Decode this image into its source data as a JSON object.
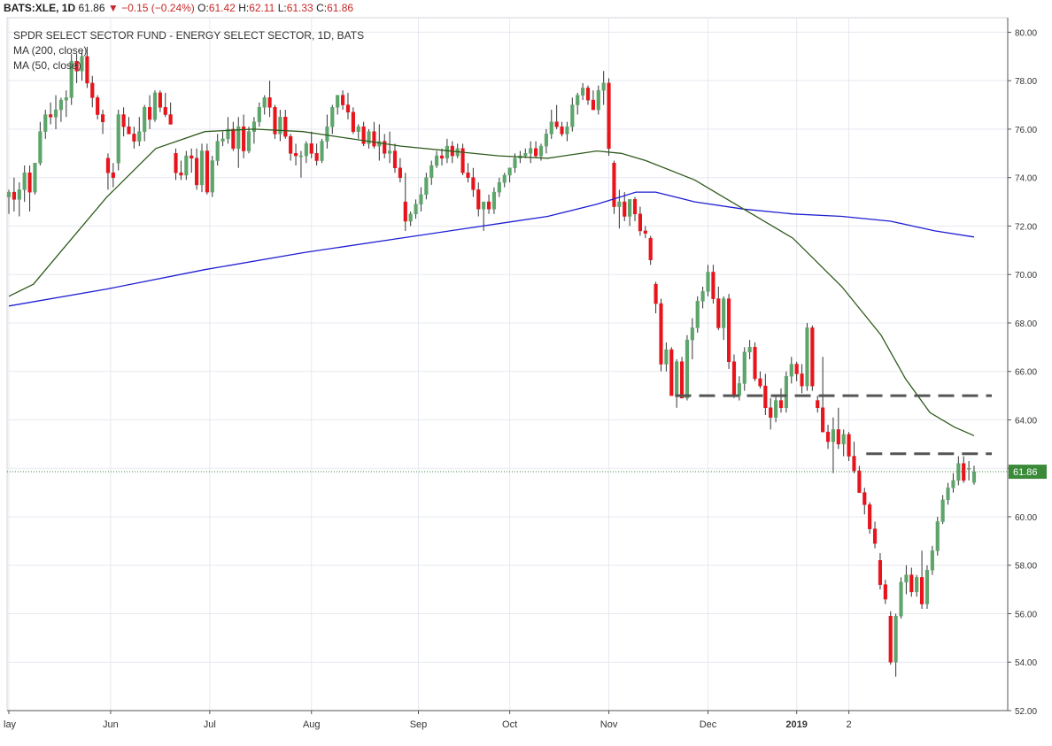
{
  "header": {
    "symbol": "BATS:XLE, 1D",
    "last": "61.86",
    "change": "−0.15 (−0.24%)",
    "o_label": "O:",
    "o": "61.42",
    "h_label": "H:",
    "h": "62.11",
    "l_label": "L:",
    "l": "61.33",
    "c_label": "C:",
    "c": "61.86"
  },
  "legend": {
    "title": "SPDR SELECT SECTOR FUND - ENERGY SELECT SECTOR, 1D, BATS",
    "ma200": "MA (200, close)",
    "ma50": "MA (50, close)"
  },
  "colors": {
    "up": "#5ea56b",
    "down": "#e8141c",
    "ma200": "#1e1ed2",
    "ma50": "#2e5a1c",
    "grid": "#e6e9f0",
    "last_price": "#3a8a3a",
    "levels": "#555555"
  },
  "chart_data": {
    "type": "candlestick",
    "title": "SPDR SELECT SECTOR FUND - ENERGY SELECT SECTOR, 1D, BATS",
    "ylim": [
      52,
      80.6
    ],
    "y_ticks": [
      "80.00",
      "78.00",
      "76.00",
      "74.00",
      "72.00",
      "70.00",
      "68.00",
      "66.00",
      "64.00",
      "62.00",
      "60.00",
      "58.00",
      "56.00",
      "54.00",
      "52.00"
    ],
    "x_ticks": [
      "lay",
      "Jun",
      "Jul",
      "Aug",
      "Sep",
      "Oct",
      "Nov",
      "Dec",
      "2019",
      "2"
    ],
    "last_price_label": "61.86",
    "grid": true,
    "ma200": [
      [
        0,
        68.7
      ],
      [
        20,
        69.4
      ],
      [
        40,
        70.2
      ],
      [
        60,
        70.9
      ],
      [
        80,
        71.5
      ],
      [
        100,
        72.1
      ],
      [
        110,
        72.4
      ],
      [
        120,
        72.9
      ],
      [
        128,
        73.4
      ],
      [
        132,
        73.4
      ],
      [
        140,
        73.0
      ],
      [
        150,
        72.7
      ],
      [
        160,
        72.5
      ],
      [
        170,
        72.4
      ],
      [
        180,
        72.2
      ],
      [
        189,
        71.8
      ],
      [
        197,
        71.55
      ]
    ],
    "ma50": [
      [
        0,
        69.1
      ],
      [
        5,
        69.6
      ],
      [
        10,
        70.8
      ],
      [
        20,
        73.2
      ],
      [
        30,
        75.2
      ],
      [
        40,
        75.9
      ],
      [
        50,
        76.0
      ],
      [
        60,
        75.9
      ],
      [
        70,
        75.6
      ],
      [
        80,
        75.3
      ],
      [
        100,
        74.9
      ],
      [
        110,
        74.8
      ],
      [
        120,
        75.1
      ],
      [
        125,
        75.0
      ],
      [
        130,
        74.7
      ],
      [
        140,
        73.9
      ],
      [
        150,
        72.7
      ],
      [
        160,
        71.5
      ],
      [
        170,
        69.5
      ],
      [
        178,
        67.5
      ],
      [
        183,
        65.7
      ],
      [
        188,
        64.3
      ],
      [
        193,
        63.7
      ],
      [
        197,
        63.35
      ]
    ],
    "levels": [
      {
        "price": 65.0,
        "from": 136,
        "to": 197
      },
      {
        "price": 62.6,
        "from": 175,
        "to": 197
      }
    ],
    "candles": [
      [
        73.2,
        73.5,
        72.5,
        73.4
      ],
      [
        73.4,
        74.0,
        72.6,
        73.1
      ],
      [
        73.1,
        73.8,
        72.4,
        73.5
      ],
      [
        73.5,
        74.5,
        73.0,
        74.2
      ],
      [
        74.2,
        74.5,
        72.6,
        73.4
      ],
      [
        73.4,
        74.6,
        73.3,
        74.6
      ],
      [
        74.6,
        76.3,
        74.5,
        75.9
      ],
      [
        75.9,
        76.8,
        75.6,
        76.6
      ],
      [
        76.6,
        77.1,
        76.2,
        76.5
      ],
      [
        76.5,
        77.4,
        76.0,
        76.8
      ],
      [
        76.8,
        77.3,
        76.3,
        77.2
      ],
      [
        77.2,
        77.6,
        76.5,
        77.3
      ],
      [
        77.3,
        79.1,
        77.0,
        78.8
      ],
      [
        78.8,
        79.1,
        77.9,
        78.4
      ],
      [
        78.4,
        79.2,
        78.0,
        79.0
      ],
      [
        79.0,
        79.4,
        77.7,
        77.9
      ],
      [
        77.9,
        78.2,
        76.9,
        77.3
      ],
      [
        77.3,
        77.4,
        76.4,
        76.6
      ],
      [
        76.6,
        76.8,
        75.8,
        76.3
      ],
      [
        74.8,
        75.0,
        73.5,
        74.2
      ],
      [
        74.2,
        74.6,
        73.6,
        74.0
      ],
      [
        74.6,
        76.8,
        74.3,
        76.6
      ],
      [
        76.6,
        76.9,
        75.7,
        76.1
      ],
      [
        76.1,
        76.5,
        75.8,
        75.8
      ],
      [
        75.8,
        76.1,
        75.2,
        75.5
      ],
      [
        75.5,
        76.5,
        75.3,
        75.9
      ],
      [
        75.9,
        77.0,
        75.5,
        76.9
      ],
      [
        76.9,
        77.4,
        76.0,
        76.4
      ],
      [
        76.4,
        77.6,
        76.3,
        77.5
      ],
      [
        77.5,
        77.6,
        76.7,
        76.9
      ],
      [
        76.9,
        77.5,
        76.5,
        76.6
      ],
      [
        76.6,
        77.1,
        76.2,
        76.2
      ],
      [
        75.0,
        75.2,
        73.9,
        74.2
      ],
      [
        74.2,
        74.7,
        73.9,
        74.1
      ],
      [
        74.1,
        75.1,
        73.9,
        74.9
      ],
      [
        74.9,
        75.2,
        74.2,
        74.8
      ],
      [
        74.8,
        75.2,
        73.5,
        73.7
      ],
      [
        73.7,
        75.4,
        73.4,
        75.1
      ],
      [
        75.1,
        75.4,
        73.3,
        73.4
      ],
      [
        73.4,
        74.9,
        73.2,
        74.7
      ],
      [
        74.7,
        75.8,
        74.5,
        75.5
      ],
      [
        75.5,
        75.9,
        75.3,
        75.6
      ],
      [
        75.6,
        76.5,
        75.4,
        76.0
      ],
      [
        76.0,
        76.3,
        75.1,
        75.2
      ],
      [
        75.2,
        76.5,
        74.4,
        76.1
      ],
      [
        76.1,
        76.6,
        74.8,
        75.1
      ],
      [
        75.1,
        76.1,
        75.0,
        75.9
      ],
      [
        75.9,
        76.5,
        75.4,
        76.3
      ],
      [
        76.3,
        77.1,
        76.1,
        76.9
      ],
      [
        76.9,
        77.4,
        76.6,
        77.3
      ],
      [
        77.3,
        78.0,
        76.5,
        76.9
      ],
      [
        76.9,
        77.0,
        75.6,
        75.8
      ],
      [
        75.8,
        76.8,
        75.5,
        76.5
      ],
      [
        76.5,
        76.8,
        75.6,
        75.7
      ],
      [
        75.7,
        75.8,
        74.7,
        75.0
      ],
      [
        75.0,
        75.4,
        74.5,
        74.9
      ],
      [
        74.9,
        75.1,
        74.0,
        74.9
      ],
      [
        74.9,
        75.5,
        74.6,
        75.4
      ],
      [
        75.4,
        75.9,
        74.8,
        75.0
      ],
      [
        75.0,
        75.4,
        74.5,
        74.7
      ],
      [
        74.7,
        75.6,
        74.6,
        75.5
      ],
      [
        75.5,
        76.6,
        75.2,
        76.1
      ],
      [
        76.1,
        77.0,
        75.8,
        76.9
      ],
      [
        76.9,
        77.4,
        76.6,
        77.4
      ],
      [
        77.4,
        77.6,
        76.8,
        77.0
      ],
      [
        77.0,
        77.5,
        76.4,
        76.7
      ],
      [
        76.7,
        76.9,
        75.8,
        75.9
      ],
      [
        75.9,
        76.2,
        75.6,
        76.1
      ],
      [
        76.1,
        76.3,
        75.3,
        75.4
      ],
      [
        75.4,
        76.0,
        75.2,
        75.9
      ],
      [
        75.9,
        76.3,
        75.2,
        75.3
      ],
      [
        75.3,
        76.2,
        74.7,
        75.5
      ],
      [
        75.5,
        75.8,
        74.8,
        75.0
      ],
      [
        75.0,
        75.9,
        74.6,
        75.1
      ],
      [
        75.1,
        75.4,
        74.2,
        74.4
      ],
      [
        74.4,
        74.8,
        73.8,
        74.0
      ],
      [
        73.0,
        74.2,
        71.8,
        72.2
      ],
      [
        72.2,
        72.6,
        72.0,
        72.5
      ],
      [
        72.5,
        73.1,
        72.3,
        72.9
      ],
      [
        72.9,
        73.6,
        72.6,
        73.3
      ],
      [
        73.3,
        74.2,
        73.1,
        74.0
      ],
      [
        74.0,
        74.7,
        73.7,
        74.5
      ],
      [
        74.5,
        75.1,
        74.4,
        74.9
      ],
      [
        74.9,
        75.2,
        74.5,
        74.8
      ],
      [
        74.8,
        75.6,
        74.6,
        75.3
      ],
      [
        75.3,
        75.5,
        74.6,
        74.9
      ],
      [
        74.9,
        75.4,
        74.8,
        75.2
      ],
      [
        75.2,
        75.4,
        74.1,
        74.2
      ],
      [
        74.2,
        74.6,
        73.8,
        74.0
      ],
      [
        74.0,
        74.4,
        73.2,
        73.5
      ],
      [
        73.5,
        73.8,
        72.4,
        72.7
      ],
      [
        72.7,
        73.0,
        71.8,
        73.0
      ],
      [
        73.0,
        73.3,
        72.5,
        72.7
      ],
      [
        72.7,
        73.6,
        72.5,
        73.4
      ],
      [
        73.4,
        74.0,
        73.2,
        73.8
      ],
      [
        73.8,
        74.2,
        73.6,
        74.1
      ],
      [
        74.1,
        74.4,
        73.8,
        74.4
      ],
      [
        74.4,
        75.0,
        74.2,
        74.8
      ],
      [
        74.8,
        75.1,
        74.6,
        74.9
      ],
      [
        74.9,
        75.2,
        74.8,
        75.0
      ],
      [
        75.0,
        75.5,
        74.6,
        75.2
      ],
      [
        75.2,
        75.5,
        74.8,
        74.9
      ],
      [
        74.9,
        75.4,
        74.7,
        75.3
      ],
      [
        75.3,
        76.0,
        75.0,
        75.8
      ],
      [
        75.8,
        76.8,
        75.6,
        76.3
      ],
      [
        76.3,
        77.0,
        76.0,
        76.1
      ],
      [
        76.1,
        76.3,
        75.7,
        75.8
      ],
      [
        75.8,
        76.3,
        75.5,
        76.1
      ],
      [
        76.1,
        77.3,
        75.9,
        77.0
      ],
      [
        77.0,
        77.5,
        76.6,
        77.4
      ],
      [
        77.4,
        77.9,
        77.2,
        77.7
      ],
      [
        77.7,
        77.8,
        77.0,
        77.2
      ],
      [
        77.2,
        77.6,
        76.8,
        76.8
      ],
      [
        76.8,
        77.8,
        76.6,
        77.6
      ],
      [
        77.6,
        78.4,
        77.0,
        77.9
      ],
      [
        77.9,
        78.1,
        74.9,
        75.2
      ],
      [
        74.6,
        74.7,
        72.5,
        72.8
      ],
      [
        72.8,
        73.5,
        71.9,
        73.0
      ],
      [
        73.0,
        73.4,
        72.2,
        72.4
      ],
      [
        72.4,
        73.1,
        72.0,
        73.1
      ],
      [
        73.1,
        73.2,
        72.2,
        72.5
      ],
      [
        72.5,
        72.8,
        71.6,
        71.8
      ],
      [
        71.8,
        72.0,
        71.5,
        71.7
      ],
      [
        71.5,
        71.6,
        70.4,
        70.6
      ],
      [
        69.6,
        69.7,
        68.4,
        68.8
      ],
      [
        68.8,
        69.0,
        66.0,
        66.3
      ],
      [
        66.3,
        67.2,
        66.0,
        66.9
      ],
      [
        66.9,
        67.0,
        65.0,
        65.0
      ],
      [
        65.0,
        66.5,
        64.5,
        66.4
      ],
      [
        66.4,
        66.6,
        64.9,
        64.9
      ],
      [
        64.9,
        67.5,
        64.8,
        67.3
      ],
      [
        67.3,
        68.2,
        66.5,
        67.8
      ],
      [
        67.8,
        69.1,
        67.6,
        68.9
      ],
      [
        68.9,
        69.5,
        68.6,
        69.3
      ],
      [
        69.3,
        70.4,
        69.1,
        70.1
      ],
      [
        70.1,
        70.4,
        68.8,
        69.0
      ],
      [
        69.0,
        69.5,
        67.7,
        67.8
      ],
      [
        67.8,
        69.1,
        67.3,
        69.0
      ],
      [
        69.0,
        69.2,
        66.1,
        66.4
      ],
      [
        66.4,
        66.7,
        64.9,
        65.0
      ],
      [
        65.0,
        65.8,
        64.8,
        65.5
      ],
      [
        65.5,
        67.0,
        65.2,
        66.8
      ],
      [
        66.8,
        67.3,
        66.5,
        67.0
      ],
      [
        67.0,
        67.2,
        65.6,
        65.7
      ],
      [
        65.7,
        66.0,
        65.3,
        65.4
      ],
      [
        65.4,
        65.9,
        64.2,
        64.5
      ],
      [
        64.5,
        64.9,
        63.6,
        64.1
      ],
      [
        64.1,
        65.0,
        63.9,
        64.8
      ],
      [
        64.8,
        65.3,
        64.3,
        64.5
      ],
      [
        64.5,
        66.0,
        64.3,
        65.8
      ],
      [
        65.8,
        66.6,
        65.5,
        66.3
      ],
      [
        66.3,
        66.4,
        65.6,
        65.9
      ],
      [
        65.9,
        66.3,
        65.1,
        65.4
      ],
      [
        65.4,
        68.0,
        65.2,
        67.8
      ],
      [
        67.8,
        67.9,
        65.2,
        65.4
      ],
      [
        64.8,
        65.0,
        64.3,
        64.5
      ],
      [
        64.5,
        66.6,
        63.5,
        63.5
      ],
      [
        63.5,
        63.8,
        62.8,
        63.1
      ],
      [
        63.1,
        64.1,
        61.8,
        63.6
      ],
      [
        63.6,
        64.5,
        62.8,
        63.0
      ],
      [
        63.0,
        63.6,
        62.5,
        63.4
      ],
      [
        63.4,
        63.5,
        62.3,
        62.5
      ],
      [
        62.5,
        63.1,
        61.8,
        61.9
      ],
      [
        61.9,
        62.1,
        61.0,
        61.0
      ],
      [
        61.0,
        61.2,
        60.1,
        60.5
      ],
      [
        60.5,
        60.6,
        59.3,
        59.5
      ],
      [
        59.5,
        59.8,
        58.7,
        58.9
      ],
      [
        58.2,
        58.5,
        57.0,
        57.2
      ],
      [
        57.2,
        57.4,
        56.4,
        56.6
      ],
      [
        55.9,
        56.1,
        53.9,
        54.0
      ],
      [
        54.0,
        56.0,
        53.4,
        55.9
      ],
      [
        55.9,
        57.5,
        55.8,
        57.3
      ],
      [
        57.3,
        58.0,
        56.8,
        57.6
      ],
      [
        57.6,
        57.9,
        56.7,
        56.9
      ],
      [
        56.9,
        57.6,
        56.7,
        57.5
      ],
      [
        57.5,
        58.6,
        56.2,
        56.4
      ],
      [
        56.4,
        58.0,
        56.2,
        57.8
      ],
      [
        57.8,
        58.8,
        57.6,
        58.6
      ],
      [
        58.6,
        60.0,
        58.4,
        59.8
      ],
      [
        59.8,
        60.9,
        59.7,
        60.7
      ],
      [
        60.7,
        61.4,
        60.5,
        61.2
      ],
      [
        61.2,
        61.8,
        61.0,
        61.5
      ],
      [
        61.5,
        62.5,
        61.3,
        62.2
      ],
      [
        62.2,
        62.5,
        61.4,
        61.5
      ],
      [
        62.0,
        62.3,
        61.5,
        62.0
      ],
      [
        61.42,
        62.11,
        61.33,
        61.86
      ]
    ]
  }
}
